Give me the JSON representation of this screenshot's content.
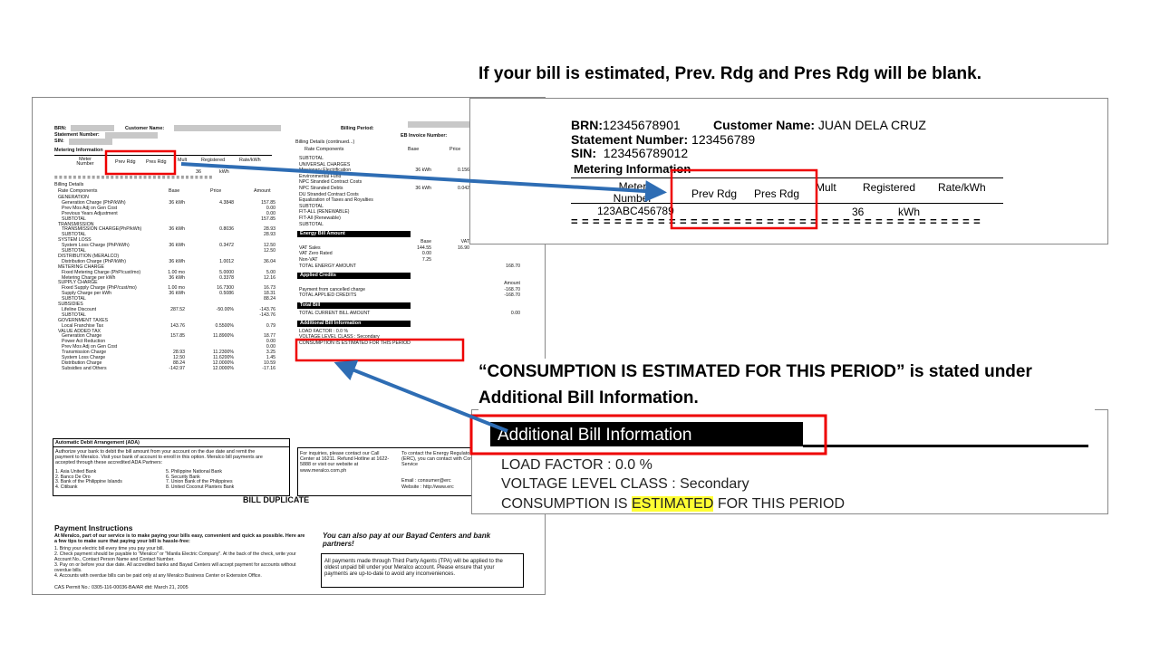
{
  "captions": {
    "top": "If your bill is estimated, Prev. Rdg and Pres Rdg will be blank.",
    "bottom": "“CONSUMPTION IS ESTIMATED FOR THIS PERIOD” is stated under Additional Bill Information."
  },
  "zoom_meter": {
    "brn_label": "BRN:",
    "brn": "12345678901",
    "customer_label": "Customer Name:",
    "customer": "JUAN DELA CRUZ",
    "statement_label": "Statement Number:",
    "statement": "123456789",
    "sin_label": "SIN:",
    "sin": "123456789012",
    "section": "Metering Information",
    "headers": [
      "Meter Number",
      "Prev Rdg",
      "Pres Rdg",
      "Mult",
      "Registered",
      "Rate/kWh"
    ],
    "meter": "123ABC456789",
    "registered": "36",
    "unit": "kWh",
    "rule": "= = = = = = = = = = = = = = = = = = = = = = = = = = = = = = = = = = = = = ="
  },
  "zoom_additional": {
    "title": "Additional Bill Information",
    "load_factor": "LOAD FACTOR :   0.0 %",
    "voltage": "VOLTAGE LEVEL CLASS :   Secondary",
    "consumption": [
      "CONSUMPTION IS ",
      "ESTIMATED",
      " FOR THIS PERIOD"
    ]
  },
  "bill": {
    "header": {
      "brn": "BRN:",
      "customer": "Customer Name:",
      "statement": "Statement Number:",
      "sin": "SIN:",
      "billing_period": "Billing Period:",
      "invoice": "EB Invoice Number:"
    },
    "metering": {
      "title": "Metering Information",
      "headers": [
        "Meter Number",
        "Prev Rdg",
        "Pres Rdg",
        "Mult",
        "Registered",
        "Rate/kWh"
      ],
      "registered": "36",
      "unit": "kWh",
      "rule": "= = = = = = = = = = = = = = = = = = = = = = = = = = = = = = = = = ="
    },
    "details_title": "Billing Details",
    "columns": [
      "Rate Components",
      "Base",
      "Price",
      "Amount"
    ],
    "rows": [
      [
        "GENERATION"
      ],
      [
        "Generation Charge (PhP/kWh)",
        "36 kWh",
        "4.3848",
        "157.85"
      ],
      [
        "Prev Mos Adj on Gen Cost",
        null,
        null,
        "0.00"
      ],
      [
        "Previous Years Adjustment",
        null,
        null,
        "0.00"
      ],
      [
        "SUBTOTAL",
        null,
        null,
        "157.85"
      ],
      [
        "TRANSMISSION"
      ],
      [
        "TRANSMISSION CHARGE(PhP/kWh)",
        "36 kWh",
        "0.8036",
        "28.93"
      ],
      [
        "SUBTOTAL",
        null,
        null,
        "28.93"
      ],
      [
        "SYSTEM LOSS"
      ],
      [
        "System Loss Charge (PhP/kWh)",
        "36 kWh",
        "0.3472",
        "12.50"
      ],
      [
        "SUBTOTAL",
        null,
        null,
        "12.50"
      ],
      [
        "DISTRIBUTION (MERALCO)"
      ],
      [
        "Distribution Charge (PhP/kWh)",
        "36 kWh",
        "1.0012",
        "36.04"
      ],
      [
        "METERING CHARGE"
      ],
      [
        "Fixed Metering Charge (PhP/cust/mo)",
        "1.00 mo",
        "5.0000",
        "5.00"
      ],
      [
        "Metering Charge per kWh",
        "36 kWh",
        "0.3378",
        "12.16"
      ],
      [
        "SUPPLY CHARGE"
      ],
      [
        "Fixed Supply Charge (PhP/cust/mo)",
        "1.00 mo",
        "16.7300",
        "16.73"
      ],
      [
        "Supply Charge per kWh",
        "36 kWh",
        "0.5086",
        "18.31"
      ],
      [
        "SUBTOTAL",
        null,
        null,
        "88.24"
      ],
      [
        "SUBSIDIES"
      ],
      [
        "Lifeline Discount",
        "287.52",
        "-50.00%",
        "-143.76"
      ],
      [
        "SUBTOTAL",
        null,
        null,
        "-143.76"
      ],
      [
        "GOVERNMENT TAXES"
      ],
      [
        "Local Franchise Tax",
        "143.76",
        "0.5500%",
        "0.79"
      ],
      [
        "VALUE ADDED TAX"
      ],
      [
        "Generation Charge",
        "157.85",
        "11.8900%",
        "18.77"
      ],
      [
        "Power Act Reduction",
        null,
        null,
        "0.00"
      ],
      [
        "Prev Mos Adj on Gen Cost",
        null,
        null,
        "0.00"
      ],
      [
        "Transmission Charge",
        "28.93",
        "11.2300%",
        "3.25"
      ],
      [
        "System Loss Charge",
        "12.50",
        "11.6200%",
        "1.45"
      ],
      [
        "Distribution Charge",
        "88.24",
        "12.0000%",
        "10.59"
      ],
      [
        "Subsidies and Others",
        "-142.97",
        "12.0000%",
        "-17.16"
      ]
    ],
    "right_title": "Billing Details (continued...)",
    "right_columns": [
      "Rate Components",
      "Base",
      "Price"
    ],
    "right_rows": [
      [
        "SUBTOTAL"
      ],
      [
        "UNIVERSAL CHARGES"
      ],
      [
        "Missionary Electrification",
        "36 kWh",
        "0.156",
        null
      ],
      [
        "Environmental Fund"
      ],
      [
        "NPC Stranded Contract Costs"
      ],
      [
        "NPC Stranded Debts",
        "36 kWh",
        "0.042",
        null
      ],
      [
        "DU Stranded Contract Costs"
      ],
      [
        "Equalization of Taxes and Royalties"
      ],
      [
        "SUBTOTAL"
      ],
      [
        "FIT-ALL (RENEWABLE)"
      ],
      [
        "FIT-All (Renewable)"
      ],
      [
        "SUBTOTAL"
      ],
      {
        "bar": "Energy Bill Amount"
      },
      [
        null,
        "Base",
        "VAT",
        null
      ],
      [
        "VAT Sales",
        "144.55",
        "16.90",
        null
      ],
      [
        "VAT Zero Rated",
        "0.00",
        null,
        null
      ],
      [
        "Non-VAT",
        "7.25",
        null,
        null
      ],
      [
        "TOTAL ENERGY AMOUNT",
        null,
        null,
        "168.70"
      ],
      {
        "bar": "Applied Credits"
      },
      [
        null,
        null,
        null,
        "Amount"
      ],
      [
        "Payment from cancelled charge",
        null,
        null,
        "-168.70"
      ],
      [
        "TOTAL APPLIED CREDITS",
        null,
        null,
        "-168.70"
      ],
      {
        "bar": "Total Bill"
      },
      [
        "TOTAL CURRENT BILL AMOUNT",
        null,
        null,
        "0.00"
      ],
      {
        "bar": "Additional Bill Information"
      },
      [
        "LOAD FACTOR :   0.0 %"
      ],
      [
        "VOLTAGE LEVEL CLASS :   Secondary"
      ],
      [
        "CONSUMPTION IS ESTIMATED FOR THIS PERIOD"
      ]
    ],
    "ada": {
      "title": "Automatic Debit Arrangement (ADA)",
      "text": "Authorize your bank to debit the bill amount from your account on the due date and remit the payment to Meralco. Visit your bank of account to enroll in this option. Meralco bill payments are accepted through these accredited ADA Partners:",
      "banks": [
        "1. Asia United Bank",
        "5. Philippine National Bank",
        "2. Banco De Oro",
        "6. Security Bank",
        "3. Bank of the Philippine Islands",
        "7. Union Bank of the Philippines",
        "4. Citibank",
        "8. United Coconut Planters Bank"
      ]
    },
    "inquiry": "For inquiries, please contact our Call Center at 16211. Refund Hotline at 1622-5888 or visit our website at www.meralco.com.ph",
    "erc": "To contact the Energy Regulatory Commission (ERC), you can contact with Consumer Affairs Service",
    "erc_email": "Email      :  consumer@erc",
    "erc_web": "Website   :  http://www.erc",
    "duplicate": "BILL DUPLICATE",
    "payment": {
      "title": "Payment Instructions",
      "intro": "At Meralco, part of our service is to make paying your bills easy, convenient and quick as possible. Here are a few tips to make sure that paying your bill is hassle-free:",
      "steps": [
        "1.  Bring your electric bill every time you pay your bill.",
        "2.  Check payment should be payable to \"Meralco\" or \"Manila Electric Company\". At the back of the check, write your Account No., Contact Person Name and Contact Number.",
        "3.  Pay on or before your due date. All accredited banks and Bayad Centers will accept payment for accounts without overdue bills.",
        "4.  Accounts with overdue bills can be paid only at any Meralco Business Center or Extension Office."
      ],
      "permit": "CAS Permit No.: 0305-116-00036-BA/AR dtd: March 21, 2005",
      "bayad": "You can also pay at our Bayad Centers and bank partners!",
      "tpa": "All payments made through Third Party Agents (TPA) will be applied to the oldest unpaid bill under your Meralco account. Please ensure that your payments are up-to-date to avoid any inconveniences."
    }
  }
}
